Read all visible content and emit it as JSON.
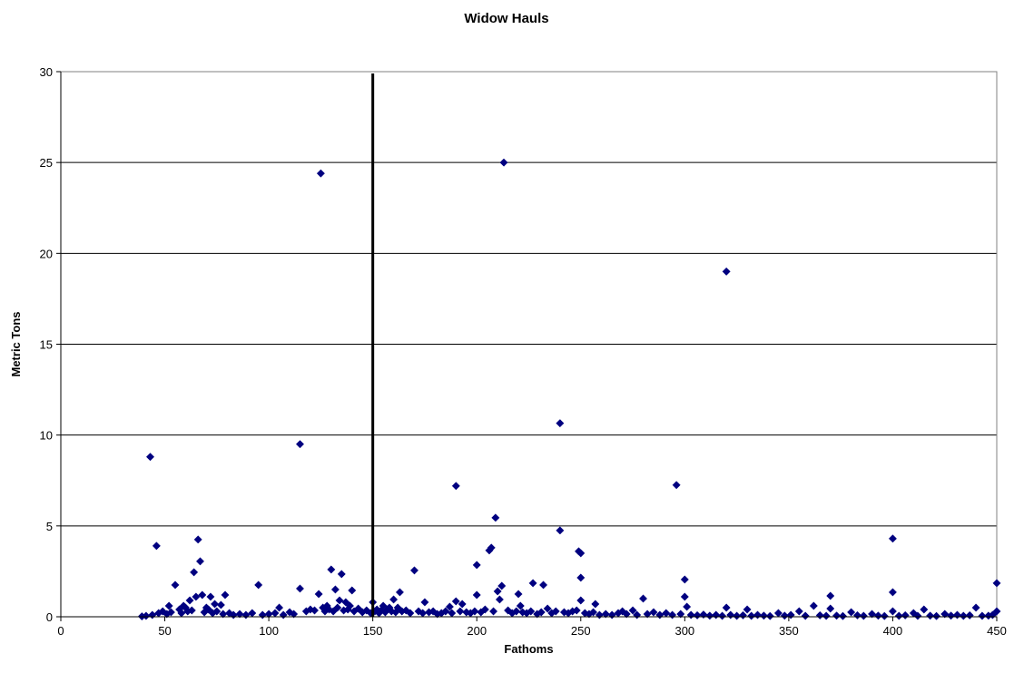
{
  "chart_data": {
    "type": "scatter",
    "title": "Widow Hauls",
    "xlabel": "Fathoms",
    "ylabel": "Metric Tons",
    "xlim": [
      0,
      450
    ],
    "ylim": [
      0,
      30
    ],
    "x_ticks": [
      0,
      50,
      100,
      150,
      200,
      250,
      300,
      350,
      400,
      450
    ],
    "y_ticks": [
      0,
      5,
      10,
      15,
      20,
      25,
      30
    ],
    "grid": "horizontal",
    "legend": "none",
    "reference_line_x": 150,
    "marker": "diamond",
    "marker_color": "#000080",
    "series": [
      {
        "points": [
          [
            43,
            8.8
          ],
          [
            46,
            3.9
          ],
          [
            52,
            0.6
          ],
          [
            55,
            1.75
          ],
          [
            59,
            0.6
          ],
          [
            62,
            0.9
          ],
          [
            64,
            2.45
          ],
          [
            65,
            1.1
          ],
          [
            66,
            4.25
          ],
          [
            67,
            3.05
          ],
          [
            68,
            1.2
          ],
          [
            70,
            0.5
          ],
          [
            72,
            1.1
          ],
          [
            74,
            0.7
          ],
          [
            77,
            0.65
          ],
          [
            79,
            1.2
          ],
          [
            95,
            1.75
          ],
          [
            105,
            0.5
          ],
          [
            115,
            9.5
          ],
          [
            115,
            1.55
          ],
          [
            125,
            24.4
          ],
          [
            124,
            1.25
          ],
          [
            128,
            0.6
          ],
          [
            130,
            2.6
          ],
          [
            132,
            1.5
          ],
          [
            134,
            0.9
          ],
          [
            135,
            2.35
          ],
          [
            137,
            0.8
          ],
          [
            139,
            0.6
          ],
          [
            140,
            1.45
          ],
          [
            150,
            0.8
          ],
          [
            152,
            0.4
          ],
          [
            155,
            0.6
          ],
          [
            158,
            0.5
          ],
          [
            160,
            0.95
          ],
          [
            163,
            1.35
          ],
          [
            170,
            2.55
          ],
          [
            175,
            0.8
          ],
          [
            187,
            0.55
          ],
          [
            190,
            7.2
          ],
          [
            190,
            0.85
          ],
          [
            193,
            0.7
          ],
          [
            200,
            2.85
          ],
          [
            200,
            1.2
          ],
          [
            206,
            3.65
          ],
          [
            207,
            3.8
          ],
          [
            209,
            5.45
          ],
          [
            210,
            1.4
          ],
          [
            211,
            0.95
          ],
          [
            213,
            25.0
          ],
          [
            212,
            1.7
          ],
          [
            220,
            1.25
          ],
          [
            221,
            0.6
          ],
          [
            227,
            1.85
          ],
          [
            232,
            1.75
          ],
          [
            234,
            0.45
          ],
          [
            240,
            10.65
          ],
          [
            240,
            4.75
          ],
          [
            249,
            3.6
          ],
          [
            250,
            3.5
          ],
          [
            250,
            2.15
          ],
          [
            250,
            0.9
          ],
          [
            257,
            0.7
          ],
          [
            270,
            0.3
          ],
          [
            275,
            0.35
          ],
          [
            280,
            1.0
          ],
          [
            285,
            0.25
          ],
          [
            296,
            7.25
          ],
          [
            300,
            2.05
          ],
          [
            300,
            1.1
          ],
          [
            301,
            0.55
          ],
          [
            320,
            19.0
          ],
          [
            320,
            0.5
          ],
          [
            330,
            0.4
          ],
          [
            345,
            0.2
          ],
          [
            355,
            0.3
          ],
          [
            362,
            0.6
          ],
          [
            370,
            1.15
          ],
          [
            370,
            0.45
          ],
          [
            380,
            0.25
          ],
          [
            390,
            0.15
          ],
          [
            400,
            4.3
          ],
          [
            400,
            1.35
          ],
          [
            400,
            0.3
          ],
          [
            410,
            0.2
          ],
          [
            415,
            0.4
          ],
          [
            425,
            0.15
          ],
          [
            440,
            0.5
          ],
          [
            450,
            1.85
          ],
          [
            450,
            0.3
          ],
          [
            39,
            0.02
          ],
          [
            41,
            0.05
          ],
          [
            44,
            0.1
          ],
          [
            47,
            0.2
          ],
          [
            49,
            0.3
          ],
          [
            51,
            0.15
          ],
          [
            53,
            0.25
          ],
          [
            57,
            0.4
          ],
          [
            58,
            0.2
          ],
          [
            60,
            0.5
          ],
          [
            61,
            0.3
          ],
          [
            63,
            0.35
          ],
          [
            69,
            0.25
          ],
          [
            71,
            0.4
          ],
          [
            73,
            0.2
          ],
          [
            75,
            0.3
          ],
          [
            78,
            0.15
          ],
          [
            81,
            0.2
          ],
          [
            83,
            0.1
          ],
          [
            86,
            0.15
          ],
          [
            89,
            0.1
          ],
          [
            92,
            0.2
          ],
          [
            97,
            0.1
          ],
          [
            100,
            0.15
          ],
          [
            103,
            0.2
          ],
          [
            107,
            0.1
          ],
          [
            110,
            0.25
          ],
          [
            112,
            0.15
          ],
          [
            118,
            0.3
          ],
          [
            120,
            0.4
          ],
          [
            122,
            0.35
          ],
          [
            126,
            0.5
          ],
          [
            127,
            0.3
          ],
          [
            129,
            0.4
          ],
          [
            131,
            0.3
          ],
          [
            133,
            0.5
          ],
          [
            136,
            0.35
          ],
          [
            138,
            0.4
          ],
          [
            141,
            0.3
          ],
          [
            143,
            0.45
          ],
          [
            145,
            0.25
          ],
          [
            147,
            0.35
          ],
          [
            149,
            0.2
          ],
          [
            151,
            0.3
          ],
          [
            153,
            0.2
          ],
          [
            154,
            0.35
          ],
          [
            156,
            0.25
          ],
          [
            157,
            0.4
          ],
          [
            159,
            0.3
          ],
          [
            161,
            0.25
          ],
          [
            162,
            0.5
          ],
          [
            164,
            0.3
          ],
          [
            166,
            0.35
          ],
          [
            168,
            0.2
          ],
          [
            172,
            0.3
          ],
          [
            174,
            0.2
          ],
          [
            177,
            0.25
          ],
          [
            179,
            0.3
          ],
          [
            181,
            0.15
          ],
          [
            183,
            0.2
          ],
          [
            185,
            0.3
          ],
          [
            188,
            0.2
          ],
          [
            192,
            0.3
          ],
          [
            195,
            0.25
          ],
          [
            197,
            0.2
          ],
          [
            199,
            0.3
          ],
          [
            202,
            0.25
          ],
          [
            204,
            0.4
          ],
          [
            208,
            0.3
          ],
          [
            215,
            0.35
          ],
          [
            217,
            0.2
          ],
          [
            219,
            0.3
          ],
          [
            222,
            0.25
          ],
          [
            224,
            0.2
          ],
          [
            226,
            0.3
          ],
          [
            229,
            0.15
          ],
          [
            231,
            0.25
          ],
          [
            236,
            0.2
          ],
          [
            238,
            0.3
          ],
          [
            242,
            0.25
          ],
          [
            244,
            0.2
          ],
          [
            246,
            0.3
          ],
          [
            248,
            0.35
          ],
          [
            252,
            0.2
          ],
          [
            254,
            0.15
          ],
          [
            256,
            0.25
          ],
          [
            259,
            0.1
          ],
          [
            262,
            0.15
          ],
          [
            265,
            0.1
          ],
          [
            268,
            0.2
          ],
          [
            272,
            0.15
          ],
          [
            277,
            0.1
          ],
          [
            282,
            0.15
          ],
          [
            288,
            0.1
          ],
          [
            291,
            0.2
          ],
          [
            294,
            0.1
          ],
          [
            298,
            0.15
          ],
          [
            303,
            0.1
          ],
          [
            306,
            0.08
          ],
          [
            309,
            0.12
          ],
          [
            312,
            0.06
          ],
          [
            315,
            0.1
          ],
          [
            318,
            0.05
          ],
          [
            322,
            0.1
          ],
          [
            325,
            0.05
          ],
          [
            328,
            0.08
          ],
          [
            332,
            0.05
          ],
          [
            335,
            0.1
          ],
          [
            338,
            0.06
          ],
          [
            341,
            0.04
          ],
          [
            348,
            0.06
          ],
          [
            351,
            0.1
          ],
          [
            358,
            0.05
          ],
          [
            365,
            0.08
          ],
          [
            368,
            0.05
          ],
          [
            373,
            0.06
          ],
          [
            376,
            0.04
          ],
          [
            383,
            0.08
          ],
          [
            386,
            0.05
          ],
          [
            393,
            0.06
          ],
          [
            396,
            0.04
          ],
          [
            403,
            0.05
          ],
          [
            406,
            0.08
          ],
          [
            412,
            0.05
          ],
          [
            418,
            0.06
          ],
          [
            421,
            0.04
          ],
          [
            428,
            0.06
          ],
          [
            431,
            0.1
          ],
          [
            434,
            0.05
          ],
          [
            437,
            0.08
          ],
          [
            443,
            0.05
          ],
          [
            446,
            0.06
          ],
          [
            448,
            0.1
          ]
        ]
      }
    ]
  }
}
